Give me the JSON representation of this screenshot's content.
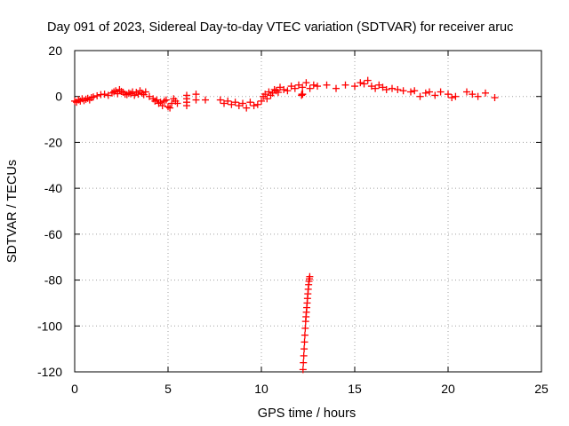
{
  "chart_data": {
    "type": "scatter",
    "title": "Day 091 of 2023, Sidereal Day-to-day VTEC variation (SDTVAR) for receiver aruc",
    "xlabel": "GPS time / hours",
    "ylabel": "SDTVAR / TECUs",
    "xlim": [
      0,
      25
    ],
    "ylim": [
      -120,
      20
    ],
    "xticks": [
      "0",
      "5",
      "10",
      "15",
      "20",
      "25"
    ],
    "yticks": [
      "20",
      "0",
      "-20",
      "-40",
      "-60",
      "-80",
      "-100",
      "-120"
    ],
    "grid": true,
    "marker": "plus",
    "color": "#ff0000",
    "series": [
      {
        "name": "SDTVAR",
        "x": [
          0.0,
          0.1,
          0.2,
          0.3,
          0.4,
          0.5,
          0.6,
          0.7,
          0.8,
          0.9,
          1.0,
          1.2,
          1.4,
          1.6,
          1.8,
          2.0,
          2.1,
          2.2,
          2.3,
          2.4,
          2.5,
          2.6,
          2.7,
          2.8,
          2.9,
          3.0,
          3.1,
          3.2,
          3.3,
          3.4,
          3.5,
          3.6,
          3.7,
          3.8,
          4.0,
          4.2,
          4.3,
          4.4,
          4.5,
          4.6,
          4.7,
          4.8,
          4.9,
          5.0,
          5.1,
          5.2,
          5.3,
          5.4,
          5.5,
          6.0,
          6.0,
          6.0,
          6.0,
          6.5,
          6.5,
          7.0,
          7.8,
          8.0,
          8.2,
          8.4,
          8.6,
          8.8,
          9.0,
          9.2,
          9.4,
          9.6,
          9.8,
          10.0,
          10.1,
          10.2,
          10.3,
          10.4,
          10.5,
          10.6,
          10.7,
          10.8,
          10.9,
          11.0,
          11.2,
          11.4,
          11.6,
          11.8,
          12.0,
          12.2,
          12.4,
          12.6,
          12.8,
          13.0,
          13.5,
          14.0,
          14.5,
          15.0,
          15.3,
          15.5,
          15.7,
          15.9,
          16.1,
          16.3,
          16.5,
          16.7,
          17.0,
          17.3,
          17.6,
          18.0,
          18.2,
          18.5,
          18.8,
          19.0,
          19.3,
          19.6,
          20.0,
          20.2,
          20.4,
          21.0,
          21.3,
          21.6,
          22.0,
          22.5,
          12.15,
          12.17,
          12.19,
          12.21,
          12.23,
          12.25,
          12.27,
          12.29,
          12.31,
          12.33,
          12.35,
          12.37,
          12.39,
          12.41,
          12.43,
          12.45,
          12.47,
          12.49,
          12.51,
          12.53,
          12.55,
          12.57,
          12.59
        ],
        "y": [
          -2,
          -2.5,
          -1.5,
          -2,
          -1,
          -1.8,
          -1.2,
          -0.8,
          -1.5,
          -0.5,
          -0.2,
          0.3,
          0.8,
          1,
          0.5,
          1.5,
          2,
          2.5,
          1.2,
          3,
          2.2,
          1.8,
          1,
          0.8,
          1.5,
          1.2,
          2,
          0.5,
          1.8,
          1,
          2.5,
          1.5,
          0.8,
          2,
          0,
          -1,
          -2,
          -1.5,
          -3,
          -2.5,
          -4,
          -2,
          -1.5,
          -4.5,
          -5,
          -3,
          -1,
          -2,
          -3,
          0.5,
          -1,
          -2.5,
          -4,
          1,
          -1.5,
          -1.5,
          -1.5,
          -3,
          -2,
          -3.5,
          -2.5,
          -4,
          -3,
          -5,
          -2.5,
          -4,
          -3.5,
          -2,
          0,
          1,
          -1,
          2,
          0.5,
          1.5,
          3,
          2.5,
          1.8,
          4,
          3,
          2.5,
          4.5,
          3.5,
          5,
          4,
          6,
          3.5,
          5,
          4.5,
          5,
          3.5,
          5,
          4.5,
          6,
          5.5,
          7,
          4.5,
          3.5,
          5,
          4,
          3,
          3.5,
          3,
          2.5,
          2,
          2.5,
          0,
          1.5,
          2,
          0.5,
          2,
          1,
          -0.5,
          0,
          2,
          1,
          0,
          1.5,
          -0.5,
          0.5,
          1,
          1,
          1,
          -119,
          -116,
          -113,
          -110,
          -107,
          -104,
          -101,
          -98,
          -96,
          -94,
          -92,
          -90,
          -88,
          -86,
          -84,
          -82,
          -80.5,
          -79.5,
          -78.5
        ]
      }
    ]
  }
}
